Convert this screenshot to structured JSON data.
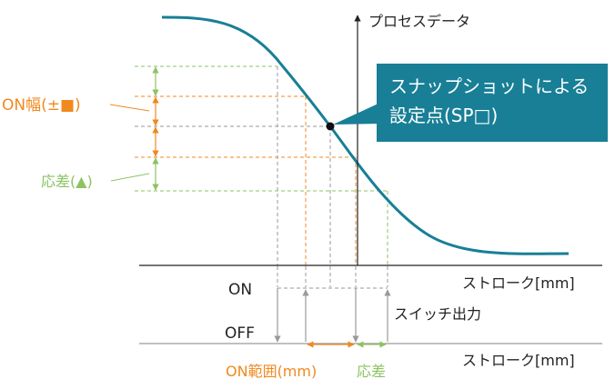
{
  "labels": {
    "process_data": "プロセスデータ",
    "stroke_top": "ストローク[mm]",
    "stroke_bottom": "ストローク[mm]",
    "on": "ON",
    "off": "OFF",
    "switch_output": "スイッチ出力",
    "on_width": "ON幅(±■)",
    "hysteresis_left": "応差(▲)",
    "on_range": "ON範囲(mm)",
    "hysteresis_bottom": "応差"
  },
  "callout": {
    "line1": "スナップショットによる",
    "line2": "設定点(SP□)"
  },
  "colors": {
    "curve": "#187f96",
    "orange": "#f0891e",
    "green": "#8cc363",
    "gray": "#9a9a9a",
    "axis": "#222222",
    "callout_bg": "#187f96"
  }
}
